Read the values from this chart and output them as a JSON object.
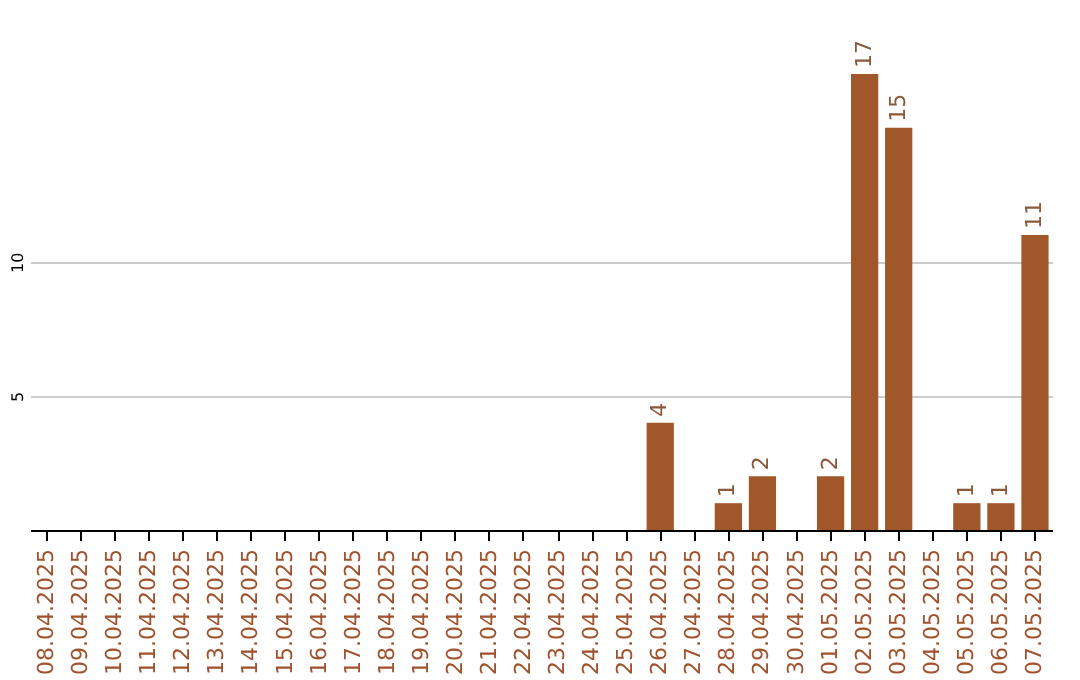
{
  "chart_data": {
    "type": "bar",
    "categories": [
      "08.04.2025",
      "09.04.2025",
      "10.04.2025",
      "11.04.2025",
      "12.04.2025",
      "13.04.2025",
      "14.04.2025",
      "15.04.2025",
      "16.04.2025",
      "17.04.2025",
      "18.04.2025",
      "19.04.2025",
      "20.04.2025",
      "21.04.2025",
      "22.04.2025",
      "23.04.2025",
      "24.04.2025",
      "25.04.2025",
      "26.04.2025",
      "27.04.2025",
      "28.04.2025",
      "29.04.2025",
      "30.04.2025",
      "01.05.2025",
      "02.05.2025",
      "03.05.2025",
      "04.05.2025",
      "05.05.2025",
      "06.05.2025",
      "07.05.2025"
    ],
    "values": [
      0,
      0,
      0,
      0,
      0,
      0,
      0,
      0,
      0,
      0,
      0,
      0,
      0,
      0,
      0,
      0,
      0,
      0,
      4,
      0,
      1,
      2,
      0,
      2,
      17,
      15,
      0,
      1,
      1,
      11
    ],
    "value_labels": [
      null,
      null,
      null,
      null,
      null,
      null,
      null,
      null,
      null,
      null,
      null,
      null,
      null,
      null,
      null,
      null,
      null,
      null,
      "4",
      null,
      "1",
      "2",
      null,
      "2",
      "17",
      "15",
      null,
      "1",
      "1",
      "11"
    ],
    "color": "#a0582a",
    "ylim": [
      0,
      17
    ],
    "yticks": [
      5,
      10
    ],
    "grid": "y"
  }
}
